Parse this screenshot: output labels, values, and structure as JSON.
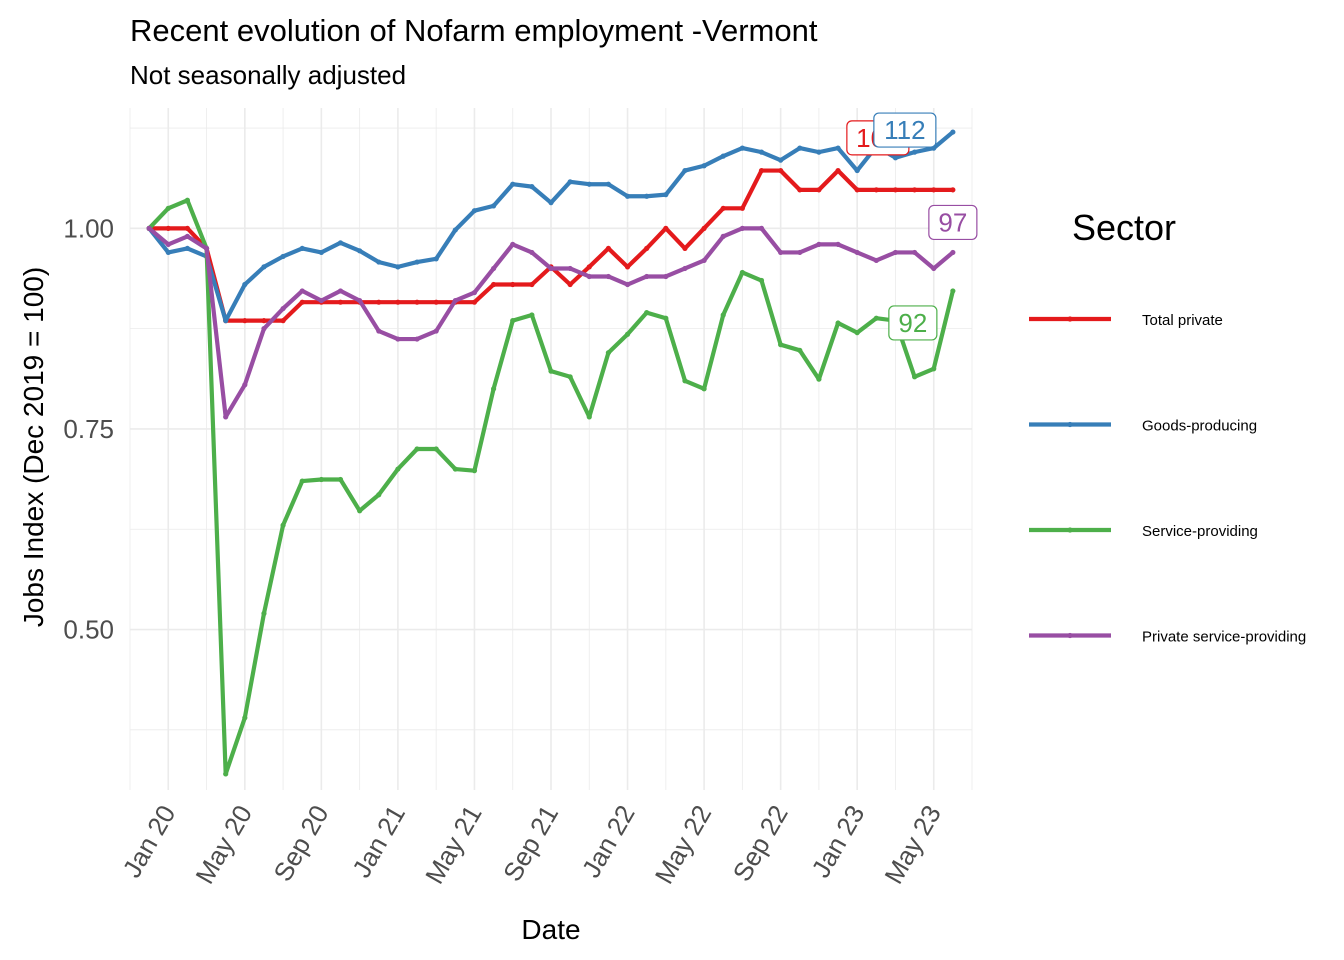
{
  "chart_data": {
    "type": "line",
    "title": "Recent evolution of Nofarm employment -Vermont",
    "subtitle": "Not seasonally adjusted",
    "xlabel": "Date",
    "ylabel": "Jobs Index (Dec 2019 = 100)",
    "x_start": "2019-12",
    "x_end": "2023-06",
    "xlim": [
      "2019-11",
      "2023-07"
    ],
    "ylim": [
      0.3,
      1.15
    ],
    "y_ticks": [
      0.5,
      0.75,
      1.0
    ],
    "y_tick_labels": [
      "0.50",
      "0.75",
      "1.00"
    ],
    "x_ticks": [
      "2020-01",
      "2020-05",
      "2020-09",
      "2021-01",
      "2021-05",
      "2021-09",
      "2022-01",
      "2022-05",
      "2022-09",
      "2023-01",
      "2023-05"
    ],
    "x_tick_labels": [
      "Jan 20",
      "May 20",
      "Sep 20",
      "Jan 21",
      "May 21",
      "Sep 21",
      "Jan 22",
      "May 22",
      "Sep 22",
      "Jan 23",
      "May 23"
    ],
    "grid": true,
    "legend_title": "Sector",
    "legend_position": "right",
    "series": [
      {
        "name": "Total private",
        "color": "#E41A1C",
        "end_label": "105",
        "values": [
          1.0,
          1.0,
          1.0,
          0.975,
          0.885,
          0.885,
          0.885,
          0.885,
          0.908,
          0.908,
          0.908,
          0.908,
          0.908,
          0.908,
          0.908,
          0.908,
          0.908,
          0.908,
          0.93,
          0.93,
          0.93,
          0.952,
          0.93,
          0.952,
          0.975,
          0.952,
          0.975,
          1.0,
          0.975,
          1.0,
          1.025,
          1.025,
          1.072,
          1.072,
          1.048,
          1.048,
          1.072,
          1.048,
          1.048,
          1.048,
          1.048,
          1.048,
          1.048
        ]
      },
      {
        "name": "Goods-producing",
        "color": "#377EB8",
        "end_label": "112",
        "values": [
          1.0,
          0.97,
          0.975,
          0.965,
          0.885,
          0.93,
          0.952,
          0.965,
          0.975,
          0.97,
          0.982,
          0.972,
          0.958,
          0.952,
          0.958,
          0.962,
          0.998,
          1.022,
          1.028,
          1.055,
          1.052,
          1.032,
          1.058,
          1.055,
          1.055,
          1.04,
          1.04,
          1.042,
          1.072,
          1.078,
          1.09,
          1.1,
          1.095,
          1.085,
          1.1,
          1.095,
          1.1,
          1.072,
          1.102,
          1.088,
          1.095,
          1.1,
          1.12
        ]
      },
      {
        "name": "Service-providing",
        "color": "#4DAF4A",
        "end_label": "92",
        "values": [
          1.0,
          1.025,
          1.035,
          0.975,
          0.32,
          0.39,
          0.52,
          0.63,
          0.685,
          0.687,
          0.687,
          0.648,
          0.668,
          0.7,
          0.725,
          0.725,
          0.7,
          0.698,
          0.8,
          0.885,
          0.892,
          0.822,
          0.815,
          0.765,
          0.845,
          0.868,
          0.895,
          0.888,
          0.81,
          0.8,
          0.892,
          0.945,
          0.935,
          0.855,
          0.848,
          0.812,
          0.882,
          0.87,
          0.888,
          0.885,
          0.815,
          0.825,
          0.922
        ]
      },
      {
        "name": "Private service-providing",
        "color": "#984EA3",
        "end_label": "97",
        "values": [
          1.0,
          0.98,
          0.99,
          0.975,
          0.765,
          0.805,
          0.875,
          0.9,
          0.922,
          0.91,
          0.922,
          0.91,
          0.872,
          0.862,
          0.862,
          0.872,
          0.91,
          0.92,
          0.95,
          0.98,
          0.97,
          0.95,
          0.95,
          0.94,
          0.94,
          0.93,
          0.94,
          0.94,
          0.95,
          0.96,
          0.99,
          1.0,
          1.0,
          0.97,
          0.97,
          0.98,
          0.98,
          0.97,
          0.96,
          0.97,
          0.97,
          0.95,
          0.97
        ]
      }
    ]
  }
}
